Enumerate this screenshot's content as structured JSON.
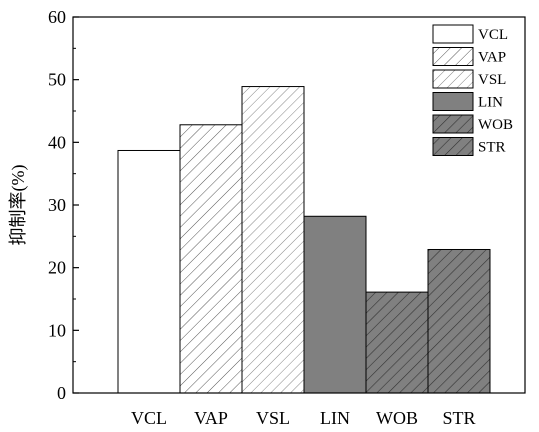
{
  "chart_data": {
    "type": "bar",
    "categories": [
      "VCL",
      "VAP",
      "VSL",
      "LIN",
      "WOB",
      "STR"
    ],
    "values": [
      38.7,
      42.8,
      48.9,
      28.2,
      16.1,
      22.9
    ],
    "ylabel": "抑制率(%)",
    "xlabel": "",
    "ylim": [
      0,
      60
    ],
    "yticks": [
      0,
      10,
      20,
      30,
      40,
      50,
      60
    ],
    "grid": false,
    "legend_position": "top-right",
    "legend": [
      "VCL",
      "VAP",
      "VSL",
      "LIN",
      "WOB",
      "STR"
    ],
    "styles": [
      {
        "fill": "#ffffff",
        "pattern": "none"
      },
      {
        "fill": "#ffffff",
        "pattern": "hatch"
      },
      {
        "fill": "#ffffff",
        "pattern": "hatch-fine"
      },
      {
        "fill": "#808080",
        "pattern": "none"
      },
      {
        "fill": "#808080",
        "pattern": "hatch"
      },
      {
        "fill": "#808080",
        "pattern": "hatch"
      }
    ]
  }
}
